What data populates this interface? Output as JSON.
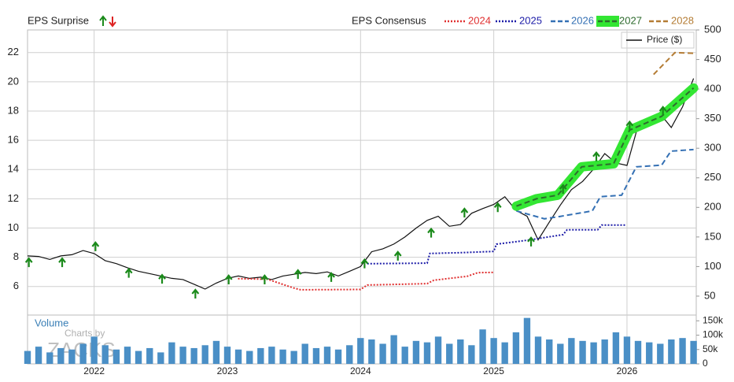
{
  "chart_data": [
    {
      "type": "line",
      "surprise_label": "EPS Surprise",
      "consensus_label": "EPS Consensus",
      "xlim": [
        2021.5,
        2026.52
      ],
      "xticks": [
        2022,
        2023,
        2024,
        2025,
        2026
      ],
      "ylim": [
        4.05,
        23.55
      ],
      "yticks": [
        6,
        8,
        10,
        12,
        14,
        16,
        18,
        20,
        22
      ],
      "y2lim": [
        18,
        500
      ],
      "y2ticks": [
        50,
        100,
        150,
        200,
        250,
        300,
        350,
        400,
        450,
        500
      ],
      "grid": true,
      "series": [
        {
          "name": "Price ($)",
          "color": "#111111",
          "axis": "y2",
          "style": "solid",
          "x": [
            2021.5,
            2021.583,
            2021.667,
            2021.75,
            2021.833,
            2021.917,
            2022,
            2022.083,
            2022.167,
            2022.25,
            2022.333,
            2022.417,
            2022.5,
            2022.583,
            2022.667,
            2022.75,
            2022.833,
            2022.917,
            2023,
            2023.083,
            2023.167,
            2023.25,
            2023.333,
            2023.417,
            2023.5,
            2023.583,
            2023.667,
            2023.75,
            2023.833,
            2023.917,
            2024,
            2024.083,
            2024.167,
            2024.25,
            2024.333,
            2024.417,
            2024.5,
            2024.583,
            2024.667,
            2024.75,
            2024.833,
            2024.917,
            2025,
            2025.083,
            2025.167,
            2025.25,
            2025.333,
            2025.417,
            2025.5,
            2025.583,
            2025.667,
            2025.75,
            2025.833,
            2025.917,
            2026,
            2026.083,
            2026.167,
            2026.25,
            2026.333,
            2026.417,
            2026.5
          ],
          "values": [
            118,
            117,
            112,
            118,
            120,
            127,
            122,
            110,
            105,
            98,
            92,
            88,
            84,
            80,
            78,
            70,
            62,
            72,
            80,
            84,
            80,
            82,
            78,
            84,
            87,
            90,
            88,
            91,
            84,
            92,
            100,
            125,
            130,
            138,
            150,
            165,
            178,
            185,
            168,
            171,
            190,
            198,
            205,
            218,
            195,
            185,
            145,
            175,
            204,
            230,
            244,
            265,
            291,
            275,
            271,
            338,
            350,
            358,
            335,
            370,
            418
          ]
        },
        {
          "name": "2024",
          "color": "#e03030",
          "style": "dotted",
          "x": [
            2023.08,
            2023.3,
            2023.5,
            2023.55,
            2024.0,
            2024.05,
            2024.5,
            2024.55,
            2024.8,
            2024.88,
            2025.0
          ],
          "values": [
            6.54,
            6.5,
            5.9,
            5.78,
            5.8,
            6.1,
            6.2,
            6.43,
            6.7,
            6.95,
            6.97
          ]
        },
        {
          "name": "2025",
          "color": "#1c1ca8",
          "style": "dotted",
          "x": [
            2024.05,
            2024.5,
            2024.52,
            2024.77,
            2025.0,
            2025.02,
            2025.26,
            2025.52,
            2025.55,
            2025.78,
            2025.81,
            2025.99
          ],
          "values": [
            7.56,
            7.6,
            8.26,
            8.32,
            8.4,
            8.9,
            9.18,
            9.55,
            9.88,
            9.88,
            10.2,
            10.2
          ]
        },
        {
          "name": "2026",
          "color": "#3470b4",
          "style": "dashed",
          "x": [
            2025.17,
            2025.38,
            2025.5,
            2025.74,
            2025.8,
            2025.96,
            2026.07,
            2026.26,
            2026.33,
            2026.5
          ],
          "values": [
            11.17,
            10.63,
            10.8,
            11.17,
            12.14,
            12.25,
            14.19,
            14.3,
            15.26,
            15.37
          ]
        },
        {
          "name": "2027",
          "color": "#2e6b2e",
          "style": "dashed",
          "highlight": "#33e633",
          "x": [
            2025.17,
            2025.32,
            2025.48,
            2025.66,
            2025.9,
            2026.02,
            2026.26,
            2026.5
          ],
          "values": [
            11.5,
            12.0,
            12.25,
            14.19,
            14.4,
            16.7,
            17.64,
            19.58
          ]
        },
        {
          "name": "2028",
          "color": "#b47c34",
          "style": "dashed",
          "x": [
            2026.2,
            2026.36,
            2026.5
          ],
          "values": [
            20.5,
            22.0,
            21.95
          ]
        }
      ],
      "surprises": {
        "color": "#1a8a1a",
        "axis": "y2",
        "x": [
          2021.51,
          2021.76,
          2022.01,
          2022.26,
          2022.51,
          2022.76,
          2023.01,
          2023.28,
          2023.53,
          2023.78,
          2024.03,
          2024.28,
          2024.53,
          2024.78,
          2025.03,
          2025.28,
          2025.52,
          2025.77,
          2026.02,
          2026.27
        ],
        "values": [
          107,
          107,
          134,
          89,
          79,
          54,
          78,
          78,
          87,
          82,
          105,
          118,
          157,
          191,
          200,
          142,
          231,
          286,
          338,
          363
        ]
      }
    },
    {
      "type": "bar",
      "label": "Volume",
      "watermark": [
        "Charts by",
        "ZACKS"
      ],
      "color": "#4a8fc6",
      "ylim": [
        0,
        170000
      ],
      "yticks": [
        0,
        {
          "value": 50000,
          "label": "50k"
        },
        {
          "value": 100000,
          "label": "100k"
        },
        {
          "value": 150000,
          "label": "150k"
        }
      ],
      "x": [
        2021.5,
        2021.583,
        2021.667,
        2021.75,
        2021.833,
        2021.917,
        2022,
        2022.083,
        2022.167,
        2022.25,
        2022.333,
        2022.417,
        2022.5,
        2022.583,
        2022.667,
        2022.75,
        2022.833,
        2022.917,
        2023,
        2023.083,
        2023.167,
        2023.25,
        2023.333,
        2023.417,
        2023.5,
        2023.583,
        2023.667,
        2023.75,
        2023.833,
        2023.917,
        2024,
        2024.083,
        2024.167,
        2024.25,
        2024.333,
        2024.417,
        2024.5,
        2024.583,
        2024.667,
        2024.75,
        2024.833,
        2024.917,
        2025,
        2025.083,
        2025.167,
        2025.25,
        2025.333,
        2025.417,
        2025.5,
        2025.583,
        2025.667,
        2025.75,
        2025.833,
        2025.917,
        2026,
        2026.083,
        2026.167,
        2026.25,
        2026.333,
        2026.417,
        2026.5
      ],
      "values": [
        45000,
        60000,
        40000,
        55000,
        50000,
        70000,
        95000,
        65000,
        50000,
        60000,
        45000,
        55000,
        40000,
        75000,
        60000,
        55000,
        65000,
        80000,
        60000,
        50000,
        45000,
        55000,
        60000,
        50000,
        45000,
        70000,
        55000,
        60000,
        50000,
        65000,
        90000,
        85000,
        70000,
        100000,
        60000,
        80000,
        75000,
        95000,
        70000,
        85000,
        65000,
        120000,
        90000,
        75000,
        110000,
        160000,
        95000,
        85000,
        70000,
        90000,
        80000,
        75000,
        85000,
        110000,
        95000,
        80000,
        75000,
        70000,
        85000,
        90000,
        80000
      ]
    }
  ]
}
